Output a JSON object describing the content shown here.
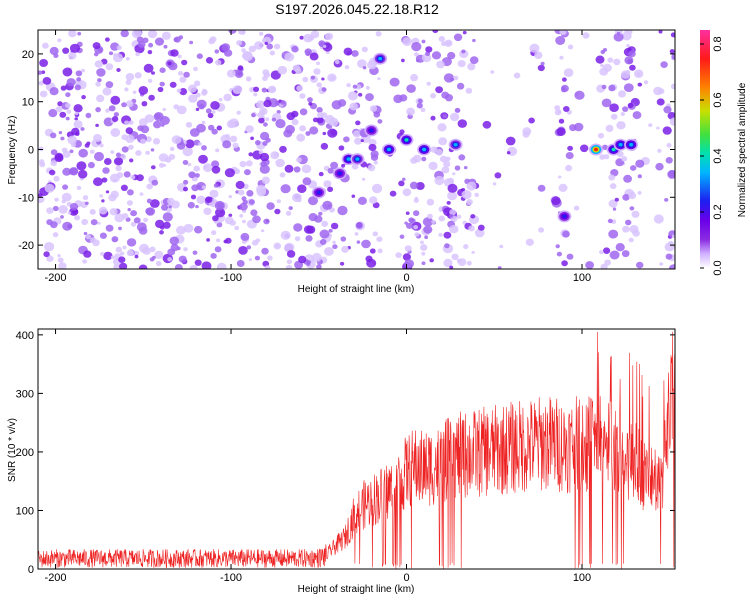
{
  "title": "S197.2026.045.22.18.R12",
  "colors": {
    "background": "#ffffff",
    "frame": "#000000",
    "snr_line": "#ee2222",
    "colorscale": [
      "#ffffff",
      "#d0b0ff",
      "#8a2be2",
      "#6a00e8",
      "#1e1ef0",
      "#00b4ff",
      "#00e0b0",
      "#40e040",
      "#c8e000",
      "#ff8000",
      "#ff1a1a",
      "#ff2fa0"
    ]
  },
  "chart_data": [
    {
      "type": "heatmap",
      "name": "spectrogram",
      "xlabel": "Height of straight line (km)",
      "ylabel": "Frequency (Hz)",
      "xlim": [
        -210,
        153
      ],
      "ylim": [
        -25,
        25
      ],
      "xticks": [
        -200,
        -100,
        0,
        100
      ],
      "yticks": [
        -20,
        -10,
        0,
        10,
        20
      ],
      "xtick_labels": [
        "-200",
        "-100",
        "0",
        "100"
      ],
      "ytick_labels": [
        "-20",
        "-10",
        "0",
        "10",
        "20"
      ],
      "colorbar": {
        "label": "Normalized spectral amplitude",
        "range": [
          0,
          0.85
        ],
        "ticks": [
          0,
          0.2,
          0.4,
          0.6,
          0.8
        ],
        "tick_labels": [
          "0.0",
          "0.2",
          "0.4",
          "0.6",
          "0.8"
        ]
      },
      "peaks": [
        {
          "x": -50,
          "f": -9,
          "amp": 0.25
        },
        {
          "x": -38,
          "f": -5,
          "amp": 0.3
        },
        {
          "x": -33,
          "f": -2,
          "amp": 0.4
        },
        {
          "x": -28,
          "f": -2,
          "amp": 0.35
        },
        {
          "x": -20,
          "f": 4,
          "amp": 0.25
        },
        {
          "x": -15,
          "f": 19,
          "amp": 0.35
        },
        {
          "x": -10,
          "f": 0,
          "amp": 0.4
        },
        {
          "x": 0,
          "f": 2,
          "amp": 0.45
        },
        {
          "x": 10,
          "f": 0,
          "amp": 0.4
        },
        {
          "x": 28,
          "f": 1,
          "amp": 0.35
        },
        {
          "x": 90,
          "f": -14,
          "amp": 0.3
        },
        {
          "x": 108,
          "f": 0,
          "amp": 0.8
        },
        {
          "x": 118,
          "f": 0,
          "amp": 0.45
        },
        {
          "x": 122,
          "f": 1,
          "amp": 0.4
        },
        {
          "x": 128,
          "f": 1,
          "amp": 0.4
        }
      ]
    },
    {
      "type": "line",
      "name": "snr",
      "xlabel": "Height of straight line (km)",
      "ylabel": "SNR (10 * v/v)",
      "xlim": [
        -210,
        153
      ],
      "ylim": [
        0,
        410
      ],
      "xticks": [
        -200,
        -100,
        0,
        100
      ],
      "yticks": [
        0,
        100,
        200,
        300,
        400
      ],
      "xtick_labels": [
        "-200",
        "-100",
        "0",
        "100"
      ],
      "ytick_labels": [
        "0",
        "100",
        "200",
        "300",
        "400"
      ],
      "series": [
        {
          "name": "SNR",
          "x": [
            -210,
            -200,
            -150,
            -100,
            -60,
            -50,
            -45,
            -40,
            -35,
            -30,
            -25,
            -20,
            -15,
            -10,
            -5,
            0,
            5,
            10,
            15,
            20,
            25,
            30,
            40,
            50,
            60,
            70,
            80,
            90,
            95,
            100,
            105,
            110,
            115,
            120,
            125,
            130,
            135,
            140,
            145,
            150
          ],
          "values": [
            18,
            20,
            20,
            20,
            20,
            22,
            30,
            45,
            60,
            100,
            120,
            130,
            140,
            150,
            160,
            185,
            195,
            190,
            195,
            200,
            210,
            215,
            220,
            225,
            230,
            235,
            240,
            235,
            235,
            240,
            240,
            245,
            250,
            240,
            200,
            210,
            180,
            170,
            150,
            300
          ]
        }
      ]
    }
  ]
}
